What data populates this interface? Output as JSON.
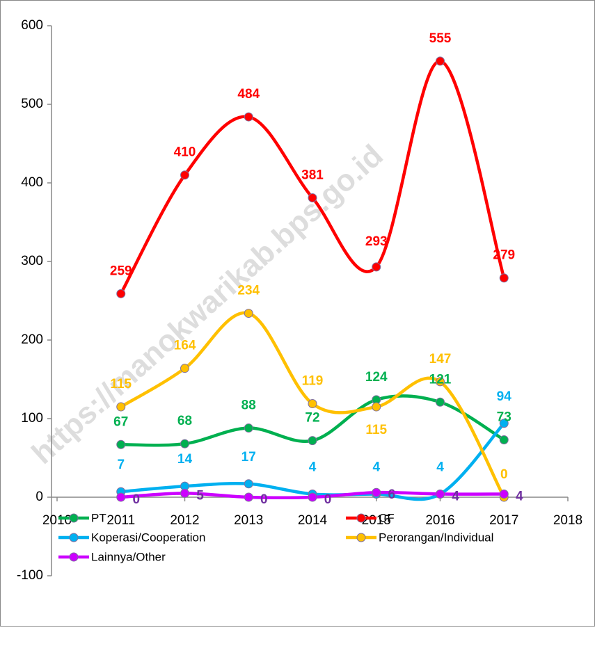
{
  "chart_data": {
    "type": "line",
    "watermark": "https://manokwarikab.bps.go.id",
    "x": [
      2011,
      2012,
      2013,
      2014,
      2015,
      2016,
      2017
    ],
    "xlim": [
      2010,
      2018
    ],
    "xticks": [
      2010,
      2011,
      2012,
      2013,
      2014,
      2015,
      2016,
      2017,
      2018
    ],
    "ylim": [
      -100,
      600
    ],
    "yticks": [
      -100,
      0,
      100,
      200,
      300,
      400,
      500,
      600
    ],
    "smooth": true,
    "series": [
      {
        "name": "PT",
        "color": "#00b050",
        "values": [
          67,
          68,
          88,
          72,
          124,
          121,
          73
        ]
      },
      {
        "name": "CF",
        "color": "#ff0000",
        "values": [
          259,
          410,
          484,
          381,
          293,
          555,
          279
        ]
      },
      {
        "name": "Koperasi/Cooperation",
        "color": "#00b0f0",
        "values": [
          7,
          14,
          17,
          4,
          4,
          4,
          94
        ]
      },
      {
        "name": "Perorangan/Individual",
        "color": "#ffc000",
        "values": [
          115,
          164,
          234,
          119,
          115,
          147,
          0
        ]
      },
      {
        "name": "Lainnya/Other",
        "color": "#cc00ff",
        "label_color": "#7030a0",
        "values": [
          0,
          5,
          0,
          0,
          6,
          4,
          4
        ]
      }
    ]
  }
}
